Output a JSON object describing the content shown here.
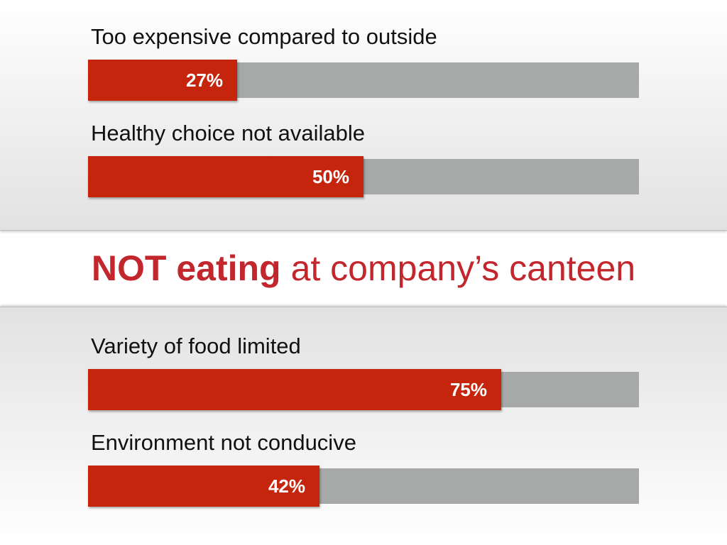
{
  "headline": {
    "strong": "NOT eating",
    "rest": "at company’s canteen"
  },
  "colors": {
    "fill": "#c6250d",
    "track": "#a7a9a8",
    "headline": "#c1272d"
  },
  "chart_data": {
    "type": "bar",
    "orientation": "horizontal",
    "xlim": [
      0,
      100
    ],
    "categories": [
      "Too expensive compared to outside",
      "Healthy choice not available",
      "Variety of food limited",
      "Environment not conducive"
    ],
    "values": [
      27,
      50,
      75,
      42
    ],
    "value_labels": [
      "27%",
      "50%",
      "75%",
      "42%"
    ]
  }
}
